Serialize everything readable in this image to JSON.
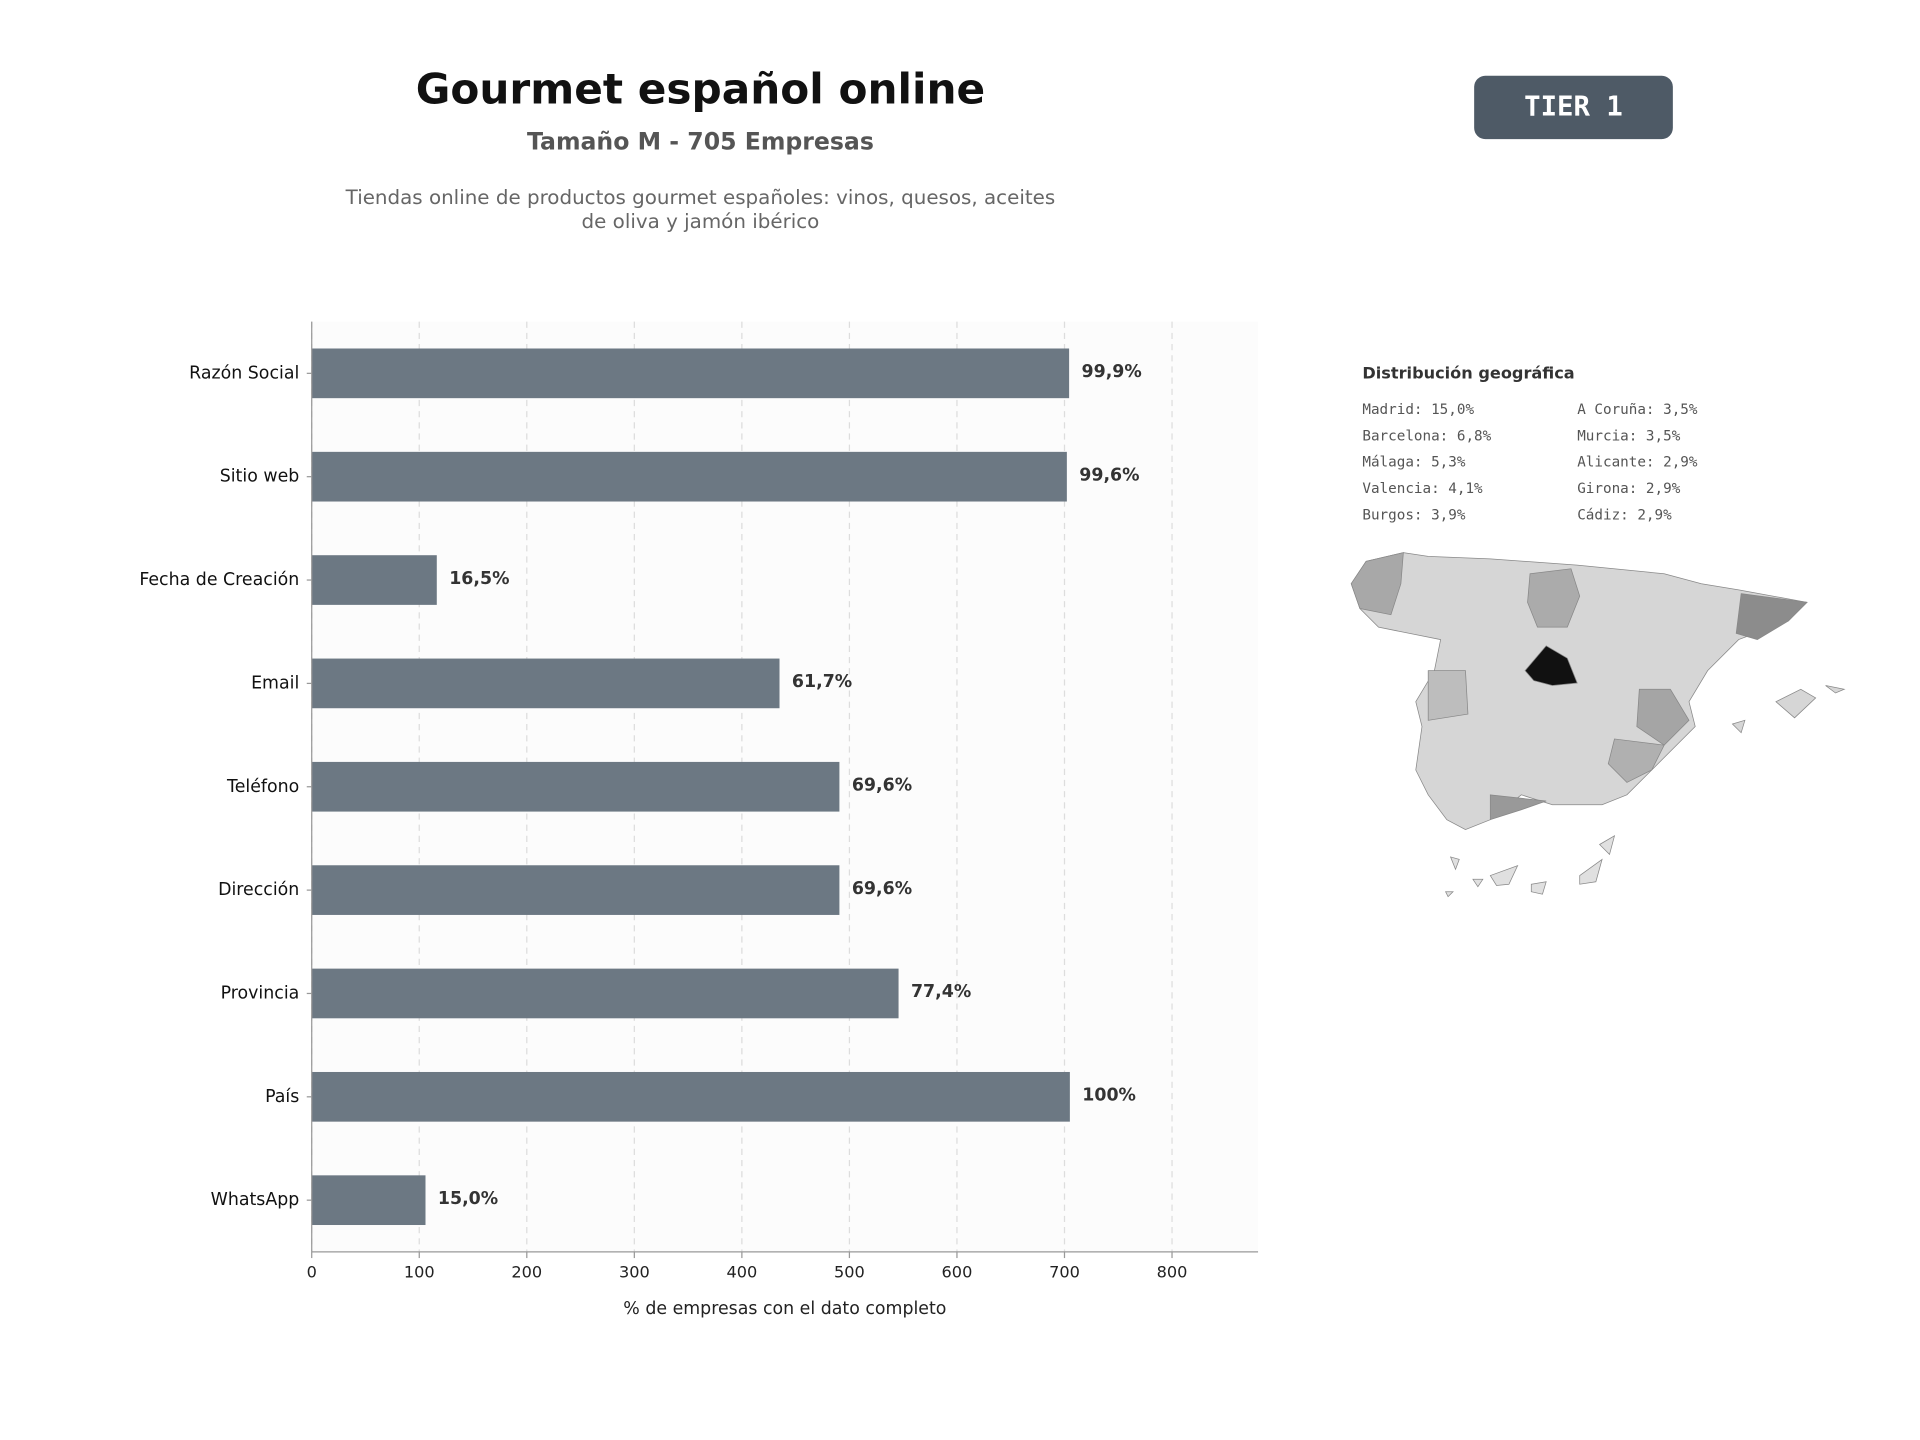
{
  "chart_data": {
    "type": "barh",
    "title": "Gourmet español online",
    "subtitle": "Tamaño M - 705 Empresas",
    "description": [
      "Tiendas online de productos gourmet españoles: vinos, quesos, aceites",
      "de oliva y jamón ibérico"
    ],
    "badge": "TIER 1",
    "categories": [
      "Razón Social",
      "Sitio web",
      "Fecha de Creación",
      "Email",
      "Teléfono",
      "Dirección",
      "Provincia",
      "País",
      "WhatsApp"
    ],
    "values": [
      704.3,
      702.2,
      116.3,
      435,
      490.7,
      490.7,
      545.7,
      705,
      105.8
    ],
    "value_labels": [
      "99,9%",
      "99,6%",
      "16,5%",
      "61,7%",
      "69,6%",
      "69,6%",
      "77,4%",
      "100%",
      "15,0%"
    ],
    "color": "#6c7883",
    "xlabel": "% de empresas con el dato completo",
    "xlim": [
      0,
      880
    ],
    "xticks": [
      0,
      100,
      200,
      300,
      400,
      500,
      600,
      700,
      800
    ],
    "grid": true,
    "geo": {
      "title": "Distribución geográfica",
      "items": [
        "Madrid: 15,0%",
        "Barcelona: 6,8%",
        "Málaga: 5,3%",
        "Valencia: 4,1%",
        "Burgos: 3,9%",
        "A Coruña: 3,5%",
        "Murcia: 3,5%",
        "Alicante: 2,9%",
        "Girona: 2,9%",
        "Cádiz: 2,9%"
      ]
    }
  }
}
